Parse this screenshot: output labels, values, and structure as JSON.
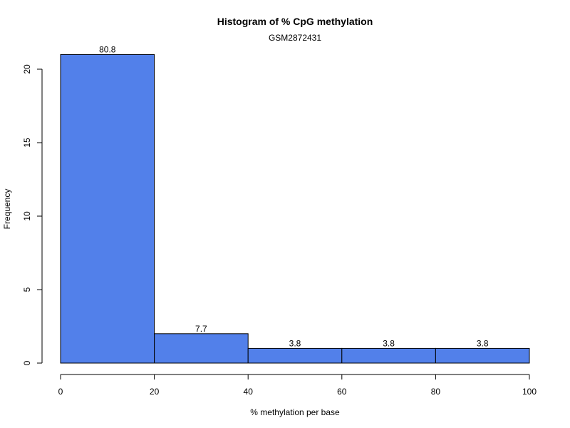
{
  "chart_data": {
    "type": "bar",
    "title": "Histogram of % CpG methylation",
    "subtitle": "GSM2872431",
    "xlabel": "% methylation per base",
    "ylabel": "Frequency",
    "bins": [
      {
        "start": 0,
        "end": 20,
        "frequency": 21,
        "label": "80.8"
      },
      {
        "start": 20,
        "end": 40,
        "frequency": 2,
        "label": "7.7"
      },
      {
        "start": 40,
        "end": 60,
        "frequency": 1,
        "label": "3.8"
      },
      {
        "start": 60,
        "end": 80,
        "frequency": 1,
        "label": "3.8"
      },
      {
        "start": 80,
        "end": 100,
        "frequency": 1,
        "label": "3.8"
      }
    ],
    "xlim": [
      0,
      100
    ],
    "ylim": [
      0,
      21
    ],
    "x_ticks": [
      "0",
      "20",
      "40",
      "60",
      "80",
      "100"
    ],
    "y_ticks": [
      "0",
      "5",
      "10",
      "15",
      "20"
    ],
    "grid": false,
    "bar_color": "#5280EA"
  }
}
